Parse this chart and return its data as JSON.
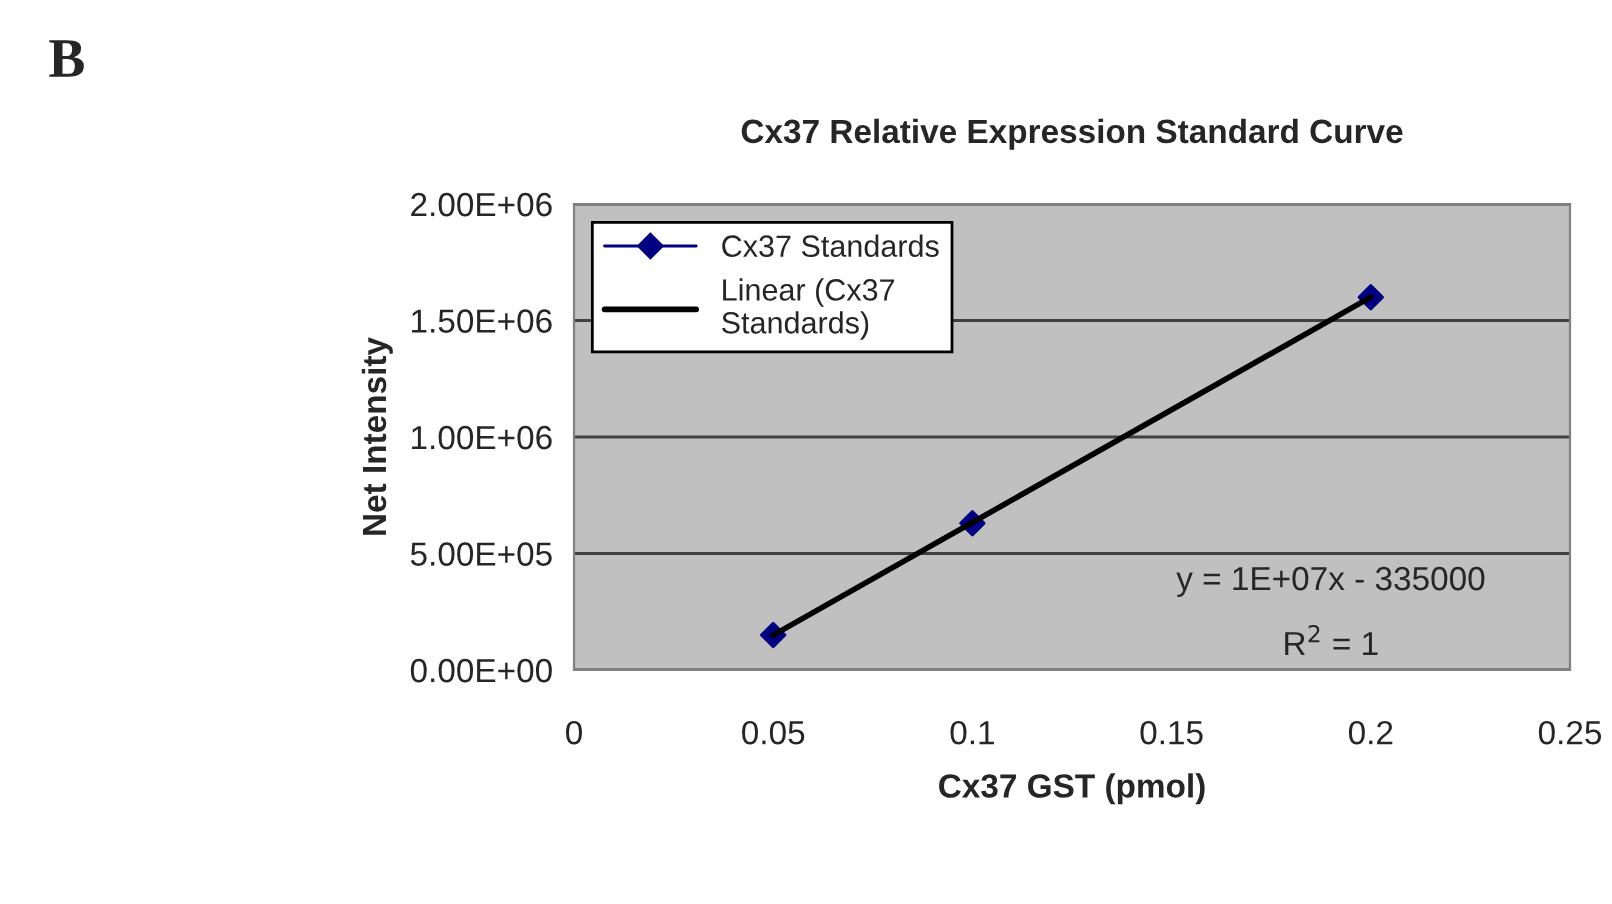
{
  "chart_data": {
    "type": "scatter",
    "title": "Cx37 Relative Expression Standard Curve",
    "xlabel": "Cx37 GST (pmol)",
    "ylabel": "Net Intensity",
    "x": [
      0.05,
      0.1,
      0.2
    ],
    "series": [
      {
        "name": "Cx37 Standards",
        "color": "#000080",
        "values": [
          150000,
          630000,
          1600000
        ],
        "marker": "diamond"
      },
      {
        "name": "Linear (Cx37\nStandards)",
        "color": "#000000",
        "type": "line",
        "x": [
          0.05,
          0.2
        ],
        "values": [
          150000,
          1600000
        ],
        "marker": "none"
      }
    ],
    "xlim": [
      0,
      0.25
    ],
    "xticks": [
      0,
      0.05,
      0.1,
      0.15,
      0.2,
      0.25
    ],
    "ylim": [
      0,
      2000000
    ],
    "yticks": [
      {
        "value": 0,
        "label": "0.00E+00"
      },
      {
        "value": 500000,
        "label": "5.00E+05"
      },
      {
        "value": 1000000,
        "label": "1.00E+06"
      },
      {
        "value": 1500000,
        "label": "1.50E+06"
      },
      {
        "value": 2000000,
        "label": "2.00E+06"
      }
    ],
    "grid": "y",
    "legend": "top left",
    "annotations": [
      "B",
      "y = 1E+07x - 335000",
      "R$^{2}$ = 1"
    ]
  }
}
